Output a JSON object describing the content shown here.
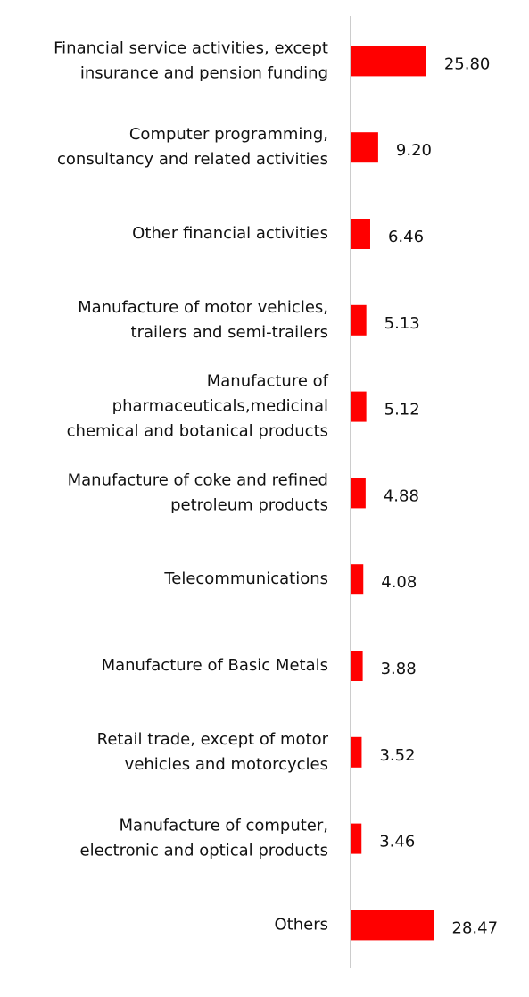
{
  "chart_data": {
    "type": "bar",
    "orientation": "horizontal",
    "color": "#ff0000",
    "categories": [
      [
        "Financial service activities, except",
        "insurance and pension funding"
      ],
      [
        "Computer programming,",
        "consultancy and related activities"
      ],
      [
        "Other financial activities"
      ],
      [
        "Manufacture of motor vehicles,",
        "trailers and semi-trailers"
      ],
      [
        "Manufacture of",
        "pharmaceuticals,medicinal",
        "chemical and botanical products"
      ],
      [
        "Manufacture of coke and refined",
        "petroleum products"
      ],
      [
        "Telecommunications"
      ],
      [
        "Manufacture of Basic Metals"
      ],
      [
        "Retail trade, except of motor",
        "vehicles and motorcycles"
      ],
      [
        "Manufacture of computer,",
        "electronic and optical products"
      ],
      [
        "Others"
      ]
    ],
    "values": [
      25.8,
      9.2,
      6.46,
      5.13,
      5.12,
      4.88,
      4.08,
      3.88,
      3.52,
      3.46,
      28.47
    ],
    "value_labels": [
      "25.80",
      "9.20",
      "6.46",
      "5.13",
      "5.12",
      "4.88",
      "4.08",
      "3.88",
      "3.52",
      "3.46",
      "28.47"
    ]
  }
}
